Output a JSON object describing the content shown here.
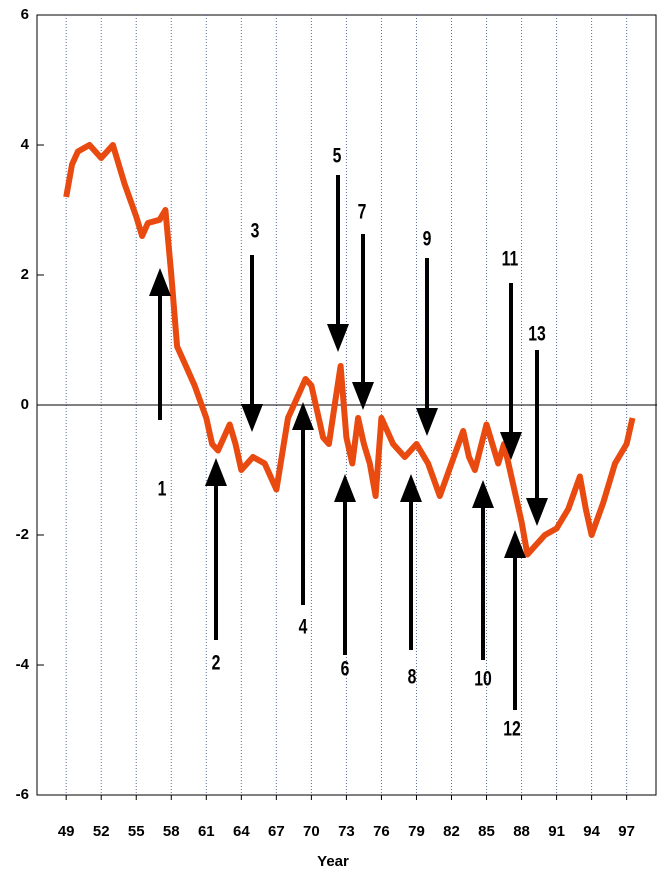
{
  "chart_data": {
    "type": "line",
    "x_label": "Year",
    "xlim": [
      46.5,
      99.6
    ],
    "xticks": [
      49,
      52,
      55,
      58,
      61,
      64,
      67,
      70,
      73,
      76,
      79,
      82,
      85,
      88,
      91,
      94,
      97
    ],
    "ylim": [
      -6,
      6
    ],
    "yticks": [
      -6,
      -4,
      -2,
      0,
      2,
      4,
      6
    ],
    "hline": 0,
    "grid": true,
    "series": [
      {
        "color": "#e84a10",
        "x": [
          49,
          49.5,
          50,
          51,
          52,
          53,
          54,
          55,
          55.5,
          56,
          57,
          57.5,
          58,
          58.5,
          59,
          60,
          61,
          61.5,
          62,
          63,
          63.5,
          64,
          65,
          66,
          67,
          68,
          69,
          69.5,
          70,
          71,
          71.5,
          72,
          72.5,
          73,
          73.5,
          74,
          74.5,
          75,
          75.5,
          76,
          77,
          78,
          79,
          80,
          81,
          82,
          83,
          83.5,
          84,
          85,
          86,
          86.5,
          87,
          88,
          88.5,
          89,
          90,
          91,
          92,
          93,
          93.5,
          94,
          95,
          96,
          97,
          97.5
        ],
        "values": [
          3.2,
          3.7,
          3.9,
          4.0,
          3.8,
          4.0,
          3.4,
          2.9,
          2.6,
          2.8,
          2.85,
          3.0,
          2.0,
          0.9,
          0.7,
          0.3,
          -0.2,
          -0.6,
          -0.7,
          -0.3,
          -0.6,
          -1.0,
          -0.8,
          -0.9,
          -1.3,
          -0.2,
          0.2,
          0.4,
          0.3,
          -0.5,
          -0.6,
          0.0,
          0.6,
          -0.5,
          -0.9,
          -0.2,
          -0.6,
          -0.9,
          -1.4,
          -0.2,
          -0.6,
          -0.8,
          -0.6,
          -0.9,
          -1.4,
          -0.9,
          -0.4,
          -0.8,
          -1.0,
          -0.3,
          -0.9,
          -0.6,
          -1.0,
          -1.8,
          -2.3,
          -2.2,
          -2.0,
          -1.9,
          -1.6,
          -1.1,
          -1.6,
          -2.0,
          -1.5,
          -0.9,
          -0.6,
          -0.2
        ]
      }
    ],
    "annotations": [
      "1",
      "2",
      "3",
      "4",
      "5",
      "6",
      "7",
      "8",
      "9",
      "10",
      "11",
      "12",
      "13"
    ]
  }
}
